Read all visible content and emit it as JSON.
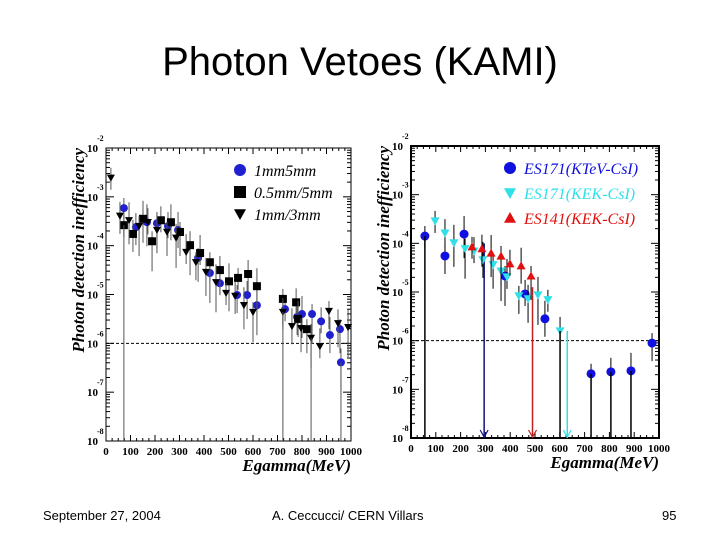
{
  "slide": {
    "title": "Photon Vetoes (KAMI)",
    "footer": {
      "date": "September 27, 2004",
      "author": "A. Ceccucci/ CERN    Villars",
      "page": "95"
    }
  },
  "chart_data": [
    {
      "type": "scatter",
      "title": "",
      "xlabel": "Egamma(MeV)",
      "ylabel": "Photon detection inefficiency",
      "xlim": [
        0,
        1000
      ],
      "ylim_log10": [
        -8,
        -2
      ],
      "yscale": "log",
      "x_ticks": [
        "0",
        "100",
        "200",
        "300",
        "400",
        "500",
        "600",
        "700",
        "800",
        "900",
        "1000"
      ],
      "y_ticks": [
        {
          "base": "10",
          "exp": "-2"
        },
        {
          "base": "10",
          "exp": "-3"
        },
        {
          "base": "10",
          "exp": "-4"
        },
        {
          "base": "10",
          "exp": "-5"
        },
        {
          "base": "10",
          "exp": "-6"
        },
        {
          "base": "10",
          "exp": "-7"
        },
        {
          "base": "10",
          "exp": "-8"
        }
      ],
      "reference_line_log10": -6,
      "legend_position": "top-right",
      "series": [
        {
          "name": "1mm5mm",
          "marker": "circle",
          "color": "#2020d0",
          "x": [
            73,
            122,
            167,
            208,
            253,
            294,
            376,
            424,
            465,
            535,
            576,
            616,
            731,
            780,
            800,
            841,
            878,
            914,
            955,
            959
          ],
          "log10_y": [
            -3.23,
            -3.62,
            -3.52,
            -3.54,
            -3.6,
            -3.68,
            -4.25,
            -4.56,
            -4.77,
            -5.01,
            -5.01,
            -5.22,
            -5.3,
            -5.46,
            -5.4,
            -5.4,
            -5.55,
            -5.83,
            -5.71,
            -6.39
          ]
        },
        {
          "name": "0.5mm/5mm",
          "marker": "square",
          "color": "#000000",
          "x": [
            73,
            110,
            151,
            188,
            224,
            265,
            302,
            343,
            384,
            424,
            465,
            502,
            539,
            580,
            616,
            722,
            776,
            784,
            820
          ],
          "log10_y": [
            -3.58,
            -3.76,
            -3.45,
            -3.91,
            -3.48,
            -3.52,
            -3.72,
            -3.99,
            -4.15,
            -4.34,
            -4.5,
            -4.73,
            -4.66,
            -4.58,
            -4.83,
            -5.09,
            -5.16,
            -5.5,
            -5.71
          ]
        },
        {
          "name": "1mm/3mm",
          "marker": "triangle-down",
          "color": "#000000",
          "x": [
            20,
            57,
            94,
            135,
            171,
            208,
            249,
            286,
            327,
            367,
            408,
            449,
            490,
            527,
            563,
            600,
            722,
            759,
            796,
            837,
            873,
            910,
            947,
            988
          ],
          "log10_y": [
            -2.61,
            -3.39,
            -3.48,
            -3.6,
            -3.52,
            -3.68,
            -3.72,
            -3.84,
            -4.13,
            -4.34,
            -4.54,
            -4.75,
            -4.97,
            -5.03,
            -5.22,
            -5.36,
            -5.36,
            -5.65,
            -5.69,
            -5.89,
            -6.06,
            -5.34,
            -5.59,
            -5.67
          ]
        }
      ]
    },
    {
      "type": "scatter",
      "title": "",
      "xlabel": "Egamma(MeV)",
      "ylabel": "Photon detection inefficiency",
      "xlim": [
        0,
        1000
      ],
      "ylim_log10": [
        -8,
        -2
      ],
      "yscale": "log",
      "x_ticks": [
        "0",
        "100",
        "200",
        "300",
        "400",
        "500",
        "600",
        "700",
        "800",
        "900",
        "1000"
      ],
      "y_ticks": [
        {
          "base": "10",
          "exp": "-2"
        },
        {
          "base": "10",
          "exp": "-3"
        },
        {
          "base": "10",
          "exp": "-4"
        },
        {
          "base": "10",
          "exp": "-5"
        },
        {
          "base": "10",
          "exp": "-6"
        },
        {
          "base": "10",
          "exp": "-7"
        },
        {
          "base": "10",
          "exp": "-8"
        }
      ],
      "reference_line_log10": -6,
      "legend_position": "top-right",
      "upper_limit_arrows_x": [
        295,
        490,
        630
      ],
      "series": [
        {
          "name": "ES171(KTeV-CsI)",
          "marker": "circle",
          "color": "#1010e0",
          "x": [
            56,
            137,
            214,
            379,
            460,
            540,
            726,
            806,
            887,
            972
          ],
          "log10_y": [
            -3.85,
            -4.26,
            -3.81,
            -4.67,
            -5.04,
            -5.55,
            -6.68,
            -6.64,
            -6.62,
            -6.05
          ]
        },
        {
          "name": "ES171(KEK-CsI)",
          "marker": "triangle-down",
          "color": "#30e0e8",
          "x": [
            97,
            137,
            173,
            218,
            254,
            290,
            331,
            363,
            387,
            435,
            472,
            512,
            552,
            601
          ],
          "log10_y": [
            -3.54,
            -3.79,
            -3.99,
            -4.11,
            -4.16,
            -4.34,
            -4.44,
            -4.57,
            -4.69,
            -5.08,
            -5.14,
            -5.06,
            -5.16,
            -5.8
          ]
        },
        {
          "name": "ES141(KEK-CsI)",
          "marker": "triangle-up",
          "color": "#e01010",
          "x": [
            246,
            286,
            323,
            363,
            399,
            444,
            484
          ],
          "log10_y": [
            -4.07,
            -4.11,
            -4.2,
            -4.26,
            -4.42,
            -4.46,
            -4.67
          ]
        }
      ]
    }
  ]
}
